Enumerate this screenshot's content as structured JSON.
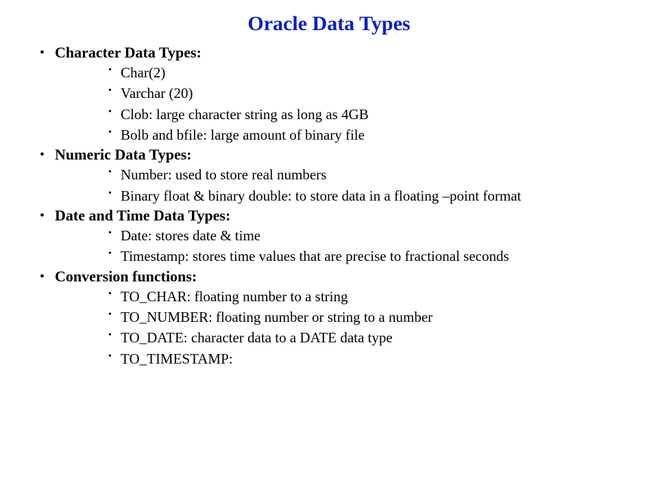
{
  "title": {
    "text": "Oracle Data Types",
    "color": "#0b1fbf",
    "fontsize": 30
  },
  "body_fontsize": 22,
  "sub_fontsize": 21,
  "text_color": "#000000",
  "sections": [
    {
      "heading": "Character Data Types:",
      "items": [
        "Char(2)",
        "Varchar (20)",
        "Clob: large character string as long as 4GB",
        "Bolb and bfile:  large amount of binary file"
      ]
    },
    {
      "heading": "Numeric Data Types:",
      "items": [
        "Number: used to store real numbers",
        "Binary float & binary double: to store data in a floating –point format"
      ]
    },
    {
      "heading": "Date and Time Data Types:",
      "items": [
        "Date: stores date & time",
        "Timestamp: stores time values that are precise to fractional seconds"
      ]
    },
    {
      "heading": "Conversion functions:",
      "items": [
        "TO_CHAR: floating number to a string",
        "TO_NUMBER: floating number or string to a number",
        "TO_DATE: character data to a DATE data type",
        "TO_TIMESTAMP:"
      ]
    }
  ]
}
